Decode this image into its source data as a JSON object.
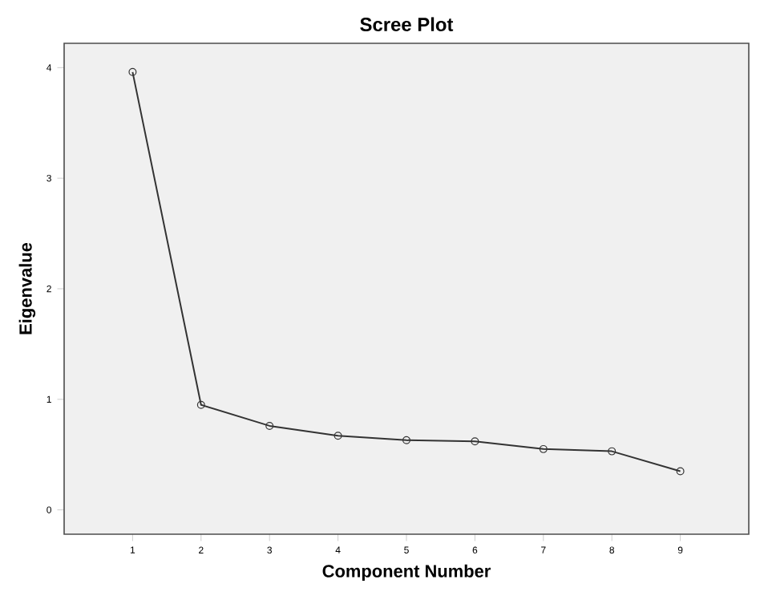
{
  "chart_data": {
    "type": "line",
    "title": "Scree Plot",
    "xlabel": "Component Number",
    "ylabel": "Eigenvalue",
    "x": [
      1,
      2,
      3,
      4,
      5,
      6,
      7,
      8,
      9
    ],
    "values": [
      3.96,
      0.95,
      0.76,
      0.67,
      0.63,
      0.62,
      0.55,
      0.53,
      0.35
    ],
    "color": "#333333",
    "marker": "circle",
    "xlim": [
      0,
      10
    ],
    "xticks": [
      1,
      2,
      3,
      4,
      5,
      6,
      7,
      8,
      9
    ],
    "ylim": [
      -0.22,
      4.22
    ],
    "yticks": [
      0,
      1,
      2,
      3,
      4
    ],
    "grid": false
  }
}
